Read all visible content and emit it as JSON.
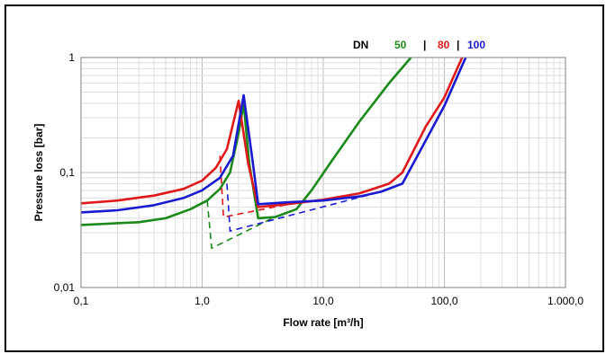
{
  "chart_data": {
    "type": "line",
    "xscale": "log",
    "yscale": "log",
    "xlim": [
      0.1,
      1000
    ],
    "ylim": [
      0.01,
      1
    ],
    "xlabel": "Flow rate [m³/h]",
    "ylabel": "Pressure loss [bar]",
    "x_ticks": [
      "0,1",
      "1,0",
      "10,0",
      "100,0",
      "1.000,0"
    ],
    "y_ticks": [
      "0,01",
      "0,1",
      "1"
    ],
    "grid": true,
    "legend": {
      "prefix": "DN",
      "separator": "|",
      "position": "top-right",
      "entries": [
        "50",
        "80",
        "100"
      ]
    },
    "colors": {
      "50": "#1a8a1a",
      "80": "#e01a1a",
      "100": "#1a1ad0"
    },
    "series": [
      {
        "name": "50",
        "solid_points": [
          [
            0.1,
            0.035
          ],
          [
            0.3,
            0.037
          ],
          [
            0.5,
            0.04
          ],
          [
            0.8,
            0.048
          ],
          [
            1.1,
            0.057
          ],
          [
            1.4,
            0.072
          ],
          [
            1.7,
            0.1
          ],
          [
            2.0,
            0.22
          ],
          [
            2.2,
            0.4
          ],
          [
            2.45,
            0.12
          ],
          [
            2.9,
            0.04
          ],
          [
            4,
            0.041
          ],
          [
            6,
            0.048
          ],
          [
            8,
            0.07
          ],
          [
            12,
            0.13
          ],
          [
            20,
            0.28
          ],
          [
            35,
            0.6
          ],
          [
            53,
            1.0
          ]
        ],
        "dashed_points": [
          [
            1.1,
            0.057
          ],
          [
            1.2,
            0.022
          ],
          [
            3.8,
            0.04
          ]
        ]
      },
      {
        "name": "80",
        "solid_points": [
          [
            0.1,
            0.054
          ],
          [
            0.2,
            0.057
          ],
          [
            0.4,
            0.063
          ],
          [
            0.7,
            0.072
          ],
          [
            1.0,
            0.085
          ],
          [
            1.3,
            0.11
          ],
          [
            1.6,
            0.16
          ],
          [
            2.0,
            0.42
          ],
          [
            2.4,
            0.12
          ],
          [
            2.9,
            0.05
          ],
          [
            5,
            0.053
          ],
          [
            10,
            0.058
          ],
          [
            20,
            0.066
          ],
          [
            35,
            0.08
          ],
          [
            45,
            0.1
          ],
          [
            70,
            0.25
          ],
          [
            100,
            0.45
          ],
          [
            140,
            1.0
          ]
        ],
        "dashed_points": [
          [
            1.4,
            0.14
          ],
          [
            1.5,
            0.041
          ],
          [
            8,
            0.058
          ]
        ]
      },
      {
        "name": "100",
        "solid_points": [
          [
            0.1,
            0.045
          ],
          [
            0.2,
            0.047
          ],
          [
            0.4,
            0.052
          ],
          [
            0.7,
            0.06
          ],
          [
            1.0,
            0.07
          ],
          [
            1.4,
            0.09
          ],
          [
            1.8,
            0.14
          ],
          [
            2.2,
            0.47
          ],
          [
            2.6,
            0.13
          ],
          [
            2.9,
            0.053
          ],
          [
            5,
            0.055
          ],
          [
            10,
            0.057
          ],
          [
            20,
            0.062
          ],
          [
            30,
            0.068
          ],
          [
            45,
            0.08
          ],
          [
            60,
            0.14
          ],
          [
            100,
            0.38
          ],
          [
            150,
            1.0
          ]
        ],
        "dashed_points": [
          [
            1.6,
            0.08
          ],
          [
            1.7,
            0.031
          ],
          [
            30,
            0.068
          ]
        ]
      }
    ]
  }
}
